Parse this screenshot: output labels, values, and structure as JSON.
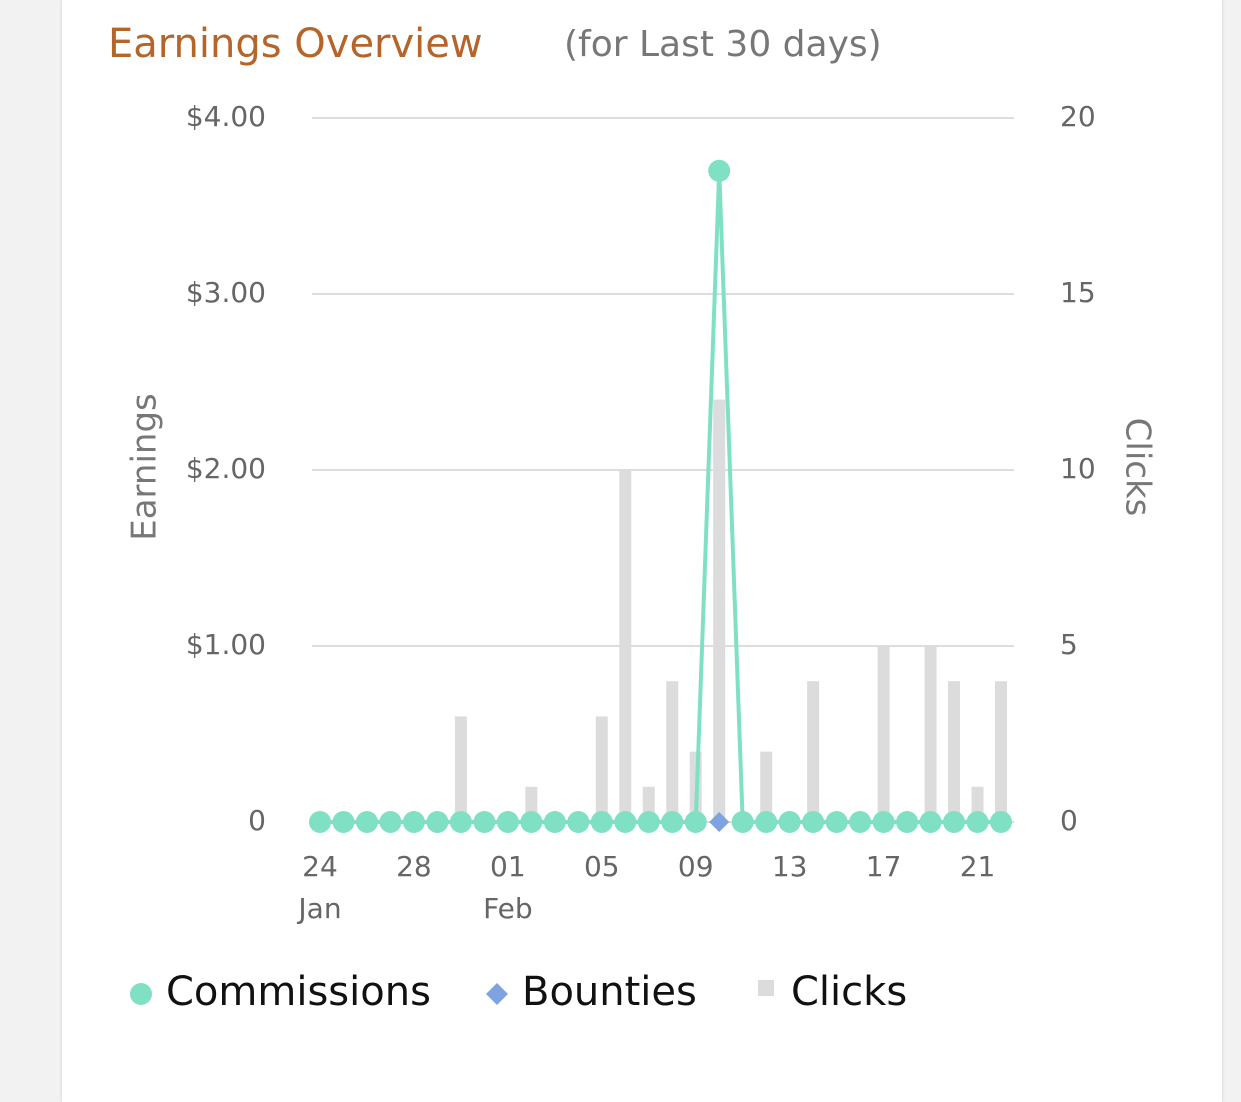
{
  "chart_data": {
    "type": "combo",
    "title": "Earnings Overview",
    "subtitle": "(for Last 30 days)",
    "y_label": "Earnings",
    "y2_label": "Clicks",
    "categories": [
      "24",
      null,
      null,
      null,
      "28",
      null,
      null,
      null,
      "01",
      null,
      null,
      null,
      "05",
      null,
      null,
      null,
      "09",
      null,
      null,
      null,
      "13",
      null,
      null,
      null,
      "17",
      null,
      null,
      null,
      "21",
      null
    ],
    "month_labels": [
      "Jan",
      null,
      null,
      null,
      null,
      null,
      null,
      null,
      "Feb",
      null,
      null,
      null,
      null,
      null,
      null,
      null,
      null,
      null,
      null,
      null,
      null,
      null,
      null,
      null,
      null,
      null,
      null,
      null,
      null,
      null
    ],
    "series": [
      {
        "name": "Clicks",
        "type": "bar",
        "axis": "y2",
        "color": "#dcdcdc",
        "values": [
          0,
          0,
          0,
          0,
          0,
          0,
          3,
          0,
          0,
          1,
          0,
          0,
          3,
          10,
          1,
          4,
          2,
          12,
          0,
          2,
          0,
          4,
          0,
          0,
          5,
          0,
          5,
          4,
          1,
          4
        ]
      },
      {
        "name": "Bounties",
        "type": "diamond",
        "color": "#7fa3e0",
        "values": [
          0,
          0,
          0,
          0,
          0,
          0,
          0,
          0,
          0,
          0,
          0,
          0,
          0,
          0,
          0,
          0,
          0,
          0,
          0,
          0,
          0,
          0,
          0,
          0,
          0,
          0,
          0,
          0,
          0,
          0
        ]
      },
      {
        "name": "Commissions",
        "type": "line",
        "color": "#7fe0c4",
        "values": [
          0,
          0,
          0,
          0,
          0,
          0,
          0,
          0,
          0,
          0,
          0,
          0,
          0,
          0,
          0,
          0,
          0,
          3.7,
          0,
          0,
          0,
          0,
          0,
          0,
          0,
          0,
          0,
          0,
          0,
          0
        ]
      }
    ],
    "legend_order": [
      2,
      1,
      0
    ],
    "ylim": [
      0,
      4
    ],
    "yticks": [
      0,
      {
        "value": 1,
        "label": "$1.00"
      },
      {
        "value": 2,
        "label": "$2.00"
      },
      {
        "value": 3,
        "label": "$3.00"
      },
      {
        "value": 4,
        "label": "$4.00"
      }
    ],
    "y2lim": [
      0,
      20
    ],
    "y2ticks": [
      0,
      5,
      10,
      15,
      20
    ],
    "grid": true
  }
}
